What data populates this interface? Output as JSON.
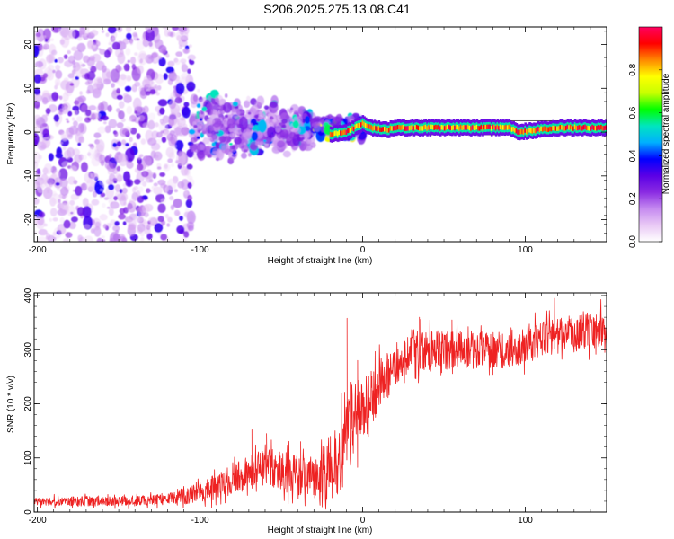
{
  "figure": {
    "title": "S206.2025.275.13.08.C41"
  },
  "colors": {
    "background": "#ffffff",
    "axis": "#000000",
    "snr_line": "#ee2222",
    "residual_band": "#333333"
  },
  "chart_data": [
    {
      "id": "spectrogram",
      "type": "heatmap",
      "title": "",
      "xlabel": "Height of straight line (km)",
      "ylabel": "Frequency (Hz)",
      "xlim": [
        -202,
        150
      ],
      "ylim": [
        -25,
        24
      ],
      "xticks": [
        -200,
        -100,
        0,
        100
      ],
      "xtick_labels": [
        "-200",
        "-100",
        "0",
        "100"
      ],
      "yticks": [
        -20,
        -10,
        0,
        10,
        20
      ],
      "ytick_labels": [
        "-20",
        "-10",
        "0",
        "10",
        "20"
      ],
      "colorbar": {
        "label": "Normalized spectral amplitude",
        "range": [
          0,
          1
        ],
        "ticks": [
          0.0,
          0.2,
          0.4,
          0.6,
          0.8
        ],
        "tick_labels": [
          "0.0",
          "0.2",
          "0.4",
          "0.6",
          "0.8"
        ],
        "colormap": [
          "#ffffff",
          "#e9c9f5",
          "#c58af0",
          "#8a2be2",
          "#5a00e6",
          "#0000ff",
          "#00b0ff",
          "#00e5c0",
          "#00ff00",
          "#c8ff00",
          "#ffff00",
          "#ff8800",
          "#ff0000",
          "#ff0060"
        ]
      },
      "signal_line": {
        "frequency_hz": 1.0,
        "onset_km": -20,
        "description_points_x": [
          -20,
          -10,
          -5,
          0,
          5,
          15,
          20,
          50,
          90,
          95,
          120,
          150
        ],
        "description_points_y": [
          -0.5,
          0,
          1,
          2,
          1,
          0.5,
          1,
          1,
          1,
          0,
          1,
          1
        ]
      },
      "noise_regimes": [
        {
          "x_range": [
            -202,
            -105
          ],
          "freq_range": [
            -25,
            24
          ],
          "mean_amplitude": 0.12
        },
        {
          "x_range": [
            -105,
            -30
          ],
          "freq_range": [
            -15,
            10
          ],
          "mean_amplitude": 0.2
        },
        {
          "x_range": [
            -30,
            0
          ],
          "freq_range": [
            -3,
            4
          ],
          "mean_amplitude": 0.3
        }
      ]
    },
    {
      "id": "snr",
      "type": "line",
      "title": "",
      "xlabel": "Height of straight line (km)",
      "ylabel": "SNR (10 * v/v)",
      "xlim": [
        -202,
        150
      ],
      "ylim": [
        0,
        405
      ],
      "xticks": [
        -200,
        -100,
        0,
        100
      ],
      "xtick_labels": [
        "-200",
        "-100",
        "0",
        "100"
      ],
      "yticks": [
        0,
        100,
        200,
        300,
        400
      ],
      "ytick_labels": [
        "0",
        "100",
        "200",
        "300",
        "400"
      ],
      "series": [
        {
          "name": "SNR",
          "color": "#ee2222",
          "trend_x": [
            -202,
            -150,
            -125,
            -100,
            -80,
            -60,
            -40,
            -30,
            -20,
            -12,
            -8,
            -5,
            0,
            5,
            10,
            15,
            20,
            30,
            50,
            70,
            90,
            110,
            130,
            150
          ],
          "trend_y": [
            20,
            20,
            22,
            35,
            60,
            85,
            70,
            65,
            80,
            100,
            150,
            190,
            180,
            210,
            230,
            250,
            270,
            300,
            300,
            300,
            300,
            320,
            330,
            340
          ],
          "noise_x": [
            -202,
            -120,
            -100,
            -60,
            -30,
            -10,
            0,
            20,
            60,
            150
          ],
          "noise_amp": [
            8,
            10,
            20,
            35,
            40,
            80,
            60,
            40,
            35,
            35
          ],
          "spikes": [
            {
              "x": -68,
              "y": 152
            },
            {
              "x": -59,
              "y": 145
            },
            {
              "x": -47,
              "y": 110
            },
            {
              "x": -38,
              "y": 130
            },
            {
              "x": -13,
              "y": 220
            },
            {
              "x": -9.5,
              "y": 358
            },
            {
              "x": -7,
              "y": 240
            },
            {
              "x": -3,
              "y": 280
            },
            {
              "x": 35,
              "y": 360
            },
            {
              "x": 55,
              "y": 355
            },
            {
              "x": 118,
              "y": 395
            }
          ]
        }
      ]
    }
  ]
}
